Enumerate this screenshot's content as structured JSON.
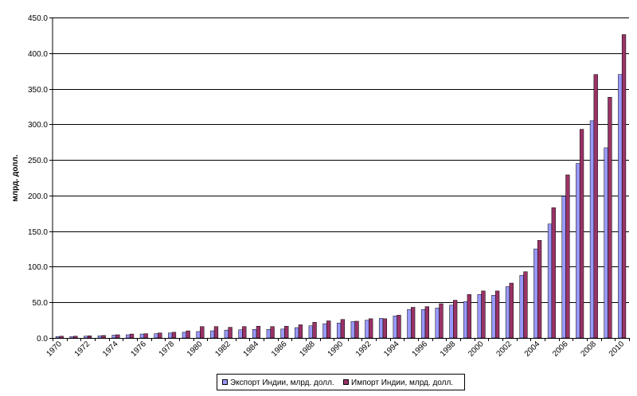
{
  "chart_data": {
    "type": "bar",
    "title": "",
    "xlabel": "",
    "ylabel": "млрд. долл.",
    "ylim": [
      0,
      450
    ],
    "ytick_step": 50,
    "ytick_labels": [
      "0.0",
      "50.0",
      "100.0",
      "150.0",
      "200.0",
      "250.0",
      "300.0",
      "350.0",
      "400.0",
      "450.0"
    ],
    "grid": true,
    "legend_position": "bottom-center",
    "categories": [
      "1970",
      "1971",
      "1972",
      "1973",
      "1974",
      "1975",
      "1976",
      "1977",
      "1978",
      "1979",
      "1980",
      "1981",
      "1982",
      "1983",
      "1984",
      "1985",
      "1986",
      "1987",
      "1988",
      "1989",
      "1990",
      "1991",
      "1992",
      "1993",
      "1994",
      "1995",
      "1996",
      "1997",
      "1998",
      "1999",
      "2000",
      "2001",
      "2002",
      "2003",
      "2004",
      "2005",
      "2006",
      "2007",
      "2008",
      "2009",
      "2010"
    ],
    "xtick_labels": [
      "1970",
      "1972",
      "1974",
      "1976",
      "1978",
      "1980",
      "1982",
      "1984",
      "1986",
      "1988",
      "1990",
      "1992",
      "1994",
      "1996",
      "1998",
      "2000",
      "2002",
      "2004",
      "2006",
      "2008",
      "2010"
    ],
    "series": [
      {
        "name": "Экспорт Индии, млрд. долл.",
        "color": "#9999ff",
        "values": [
          2.0,
          2.0,
          2.5,
          3.0,
          4.0,
          4.5,
          5.5,
          6.0,
          7.0,
          8.0,
          9.0,
          10.0,
          11.0,
          11.5,
          12.0,
          12.0,
          12.5,
          14.5,
          17.0,
          20.0,
          21.0,
          23.0,
          25.0,
          27.5,
          31.0,
          40.0,
          40.0,
          42.0,
          46.0,
          51.0,
          61.0,
          60.0,
          72.0,
          88.0,
          125.0,
          160.0,
          199.0,
          245.0,
          305.0,
          267.0,
          370.0
        ]
      },
      {
        "name": "Импорт Индии, млрд. долл.",
        "color": "#993366",
        "values": [
          2.5,
          2.5,
          3.0,
          3.5,
          4.5,
          5.5,
          6.0,
          7.0,
          8.0,
          10.0,
          16.0,
          16.0,
          15.0,
          16.0,
          16.5,
          16.0,
          16.5,
          18.5,
          22.0,
          24.0,
          26.0,
          23.5,
          27.0,
          27.0,
          32.0,
          43.0,
          44.0,
          48.0,
          53.0,
          61.0,
          66.0,
          66.0,
          77.0,
          93.0,
          137.0,
          183.0,
          229.0,
          293.0,
          370.0,
          338.0,
          426.0
        ]
      }
    ]
  }
}
